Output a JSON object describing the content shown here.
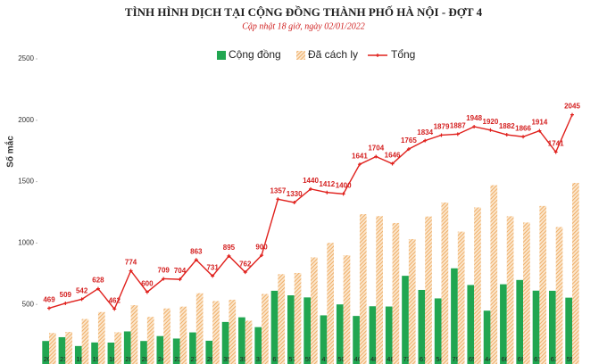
{
  "chart_data": {
    "type": "bar_line",
    "title": "TÌNH HÌNH DỊCH TẠI CỘNG ĐỒNG THÀNH PHỐ HÀ NỘI - ĐỢT 4",
    "subtitle": "Cập nhật 18 giờ, ngày 02/01/2022",
    "y_label": "Số mắc",
    "categories": [
      null,
      null,
      null,
      null,
      null,
      null,
      null,
      null,
      null,
      null,
      null,
      null,
      null,
      null,
      null,
      null,
      null,
      null,
      null,
      null,
      null,
      null,
      null,
      null,
      null,
      null,
      null,
      null,
      null,
      null,
      null,
      null,
      null
    ],
    "ylim": [
      0,
      2500
    ],
    "yticks": [
      500,
      1000,
      1500,
      2000,
      2500
    ],
    "grid": false,
    "legend": "top",
    "series": [
      {
        "name": "Cộng đồng",
        "color": "#21a651",
        "kind": "bar",
        "values": [
          202,
          233,
          161,
          190,
          189,
          280,
          202,
          242,
          222,
          272,
          204,
          357,
          395,
          315,
          611,
          574,
          557,
          411,
          500,
          406,
          485,
          483,
          733,
          618,
          549,
          794,
          658,
          449,
          664,
          699,
          612,
          611,
          555
        ]
      },
      {
        "name": "Đã cách ly",
        "color": "#eea85c",
        "kind": "hatched-bar",
        "values": [
          267,
          276,
          381,
          438,
          273,
          494,
          398,
          467,
          482,
          591,
          527,
          538,
          367,
          585,
          746,
          756,
          883,
          1001,
          900,
          1235,
          1219,
          1163,
          1032,
          1216,
          1330,
          1093,
          1290,
          1471,
          1218,
          1167,
          1302,
          1130,
          1490
        ]
      },
      {
        "name": "Tổng",
        "color": "#e0201c",
        "kind": "line",
        "values": [
          469,
          509,
          542,
          628,
          462,
          774,
          600,
          709,
          704,
          863,
          731,
          895,
          762,
          900,
          1357,
          1330,
          1440,
          1412,
          1400,
          1641,
          1704,
          1646,
          1765,
          1834,
          1879,
          1887,
          1948,
          1920,
          1882,
          1866,
          1914,
          1741,
          2045
        ]
      }
    ]
  }
}
